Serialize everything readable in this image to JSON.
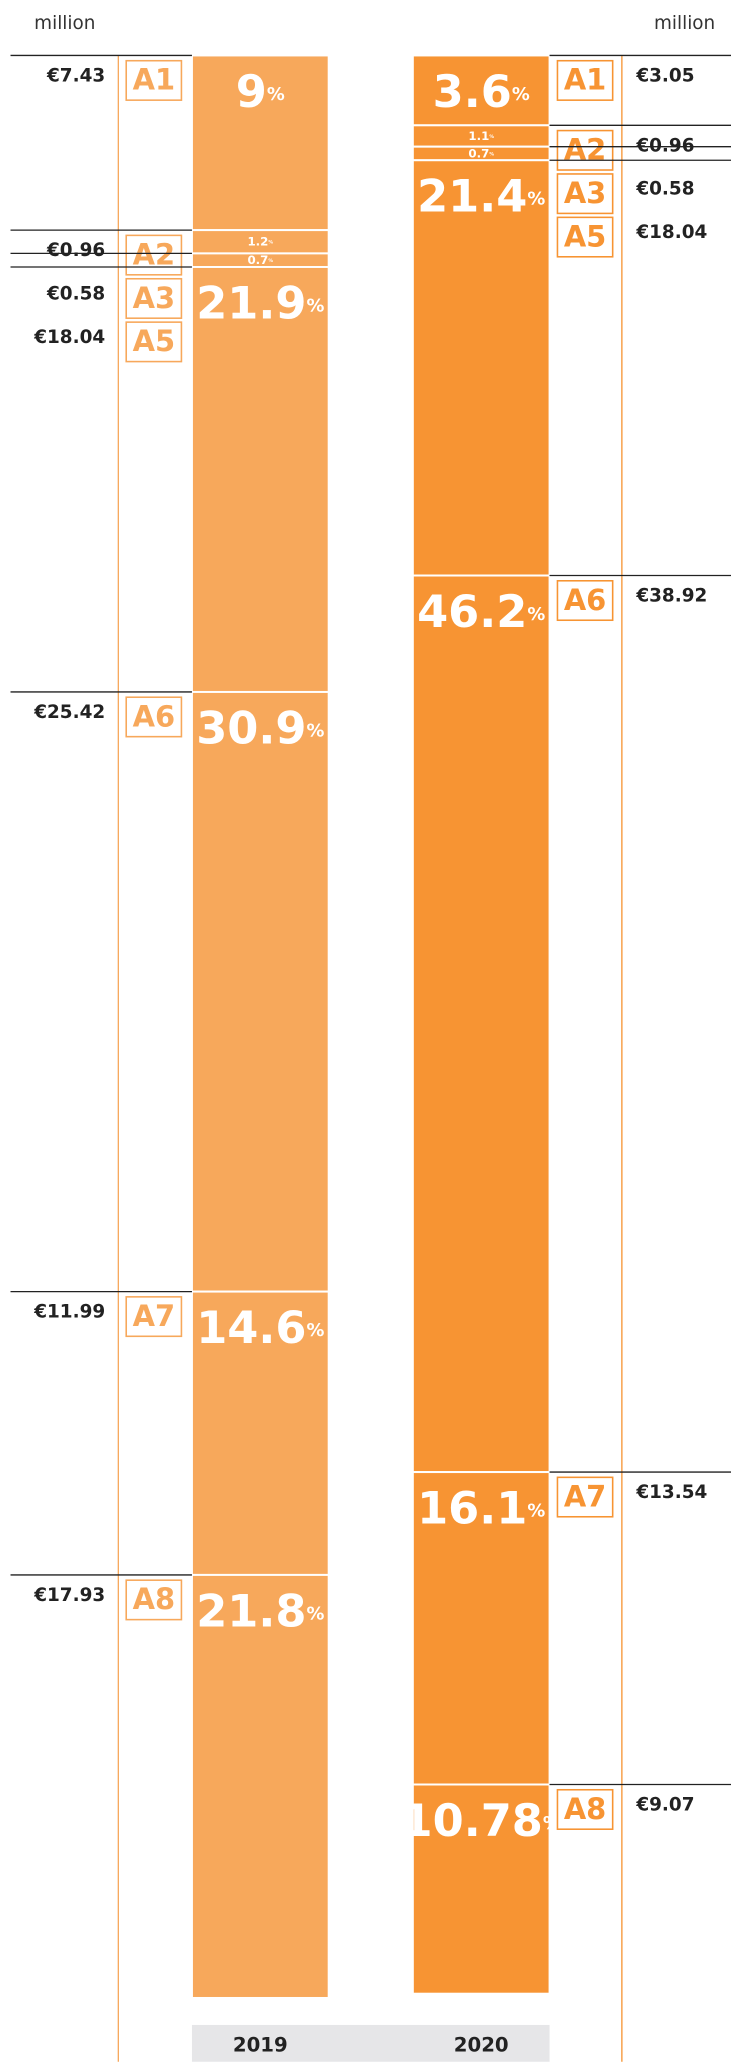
{
  "chart_data": {
    "type": "stacked_bar",
    "unit": "million",
    "categories": [
      "A1",
      "A2",
      "A3",
      "A5",
      "A6",
      "A7",
      "A8"
    ],
    "ylim": [
      0,
      100
    ],
    "series": [
      {
        "name": "2019",
        "color": "#f7a85b",
        "values": [
          9,
          1.2,
          0.7,
          21.9,
          30.9,
          14.6,
          21.8
        ],
        "value_labels": [
          "9%",
          "1.2%",
          "0.7%",
          "21.9%",
          "30.9%",
          "14.6%",
          "21.8%"
        ],
        "amounts": [
          "€7.43",
          "€0.96",
          "€0.58",
          "€18.04",
          "€25.42",
          "€11.99",
          "€17.93"
        ]
      },
      {
        "name": "2020",
        "color": "#f79433",
        "values": [
          3.6,
          1.1,
          0.7,
          21.4,
          46.2,
          16.1,
          10.78
        ],
        "value_labels": [
          "3.6%",
          "1.1%",
          "0.7%",
          "21.4%",
          "46.2%",
          "16.1%",
          "10.78%"
        ],
        "amounts": [
          "€3.05",
          "€0.96",
          "€0.58",
          "€18.04",
          "€38.92",
          "€13.54",
          "€9.07"
        ]
      }
    ]
  }
}
